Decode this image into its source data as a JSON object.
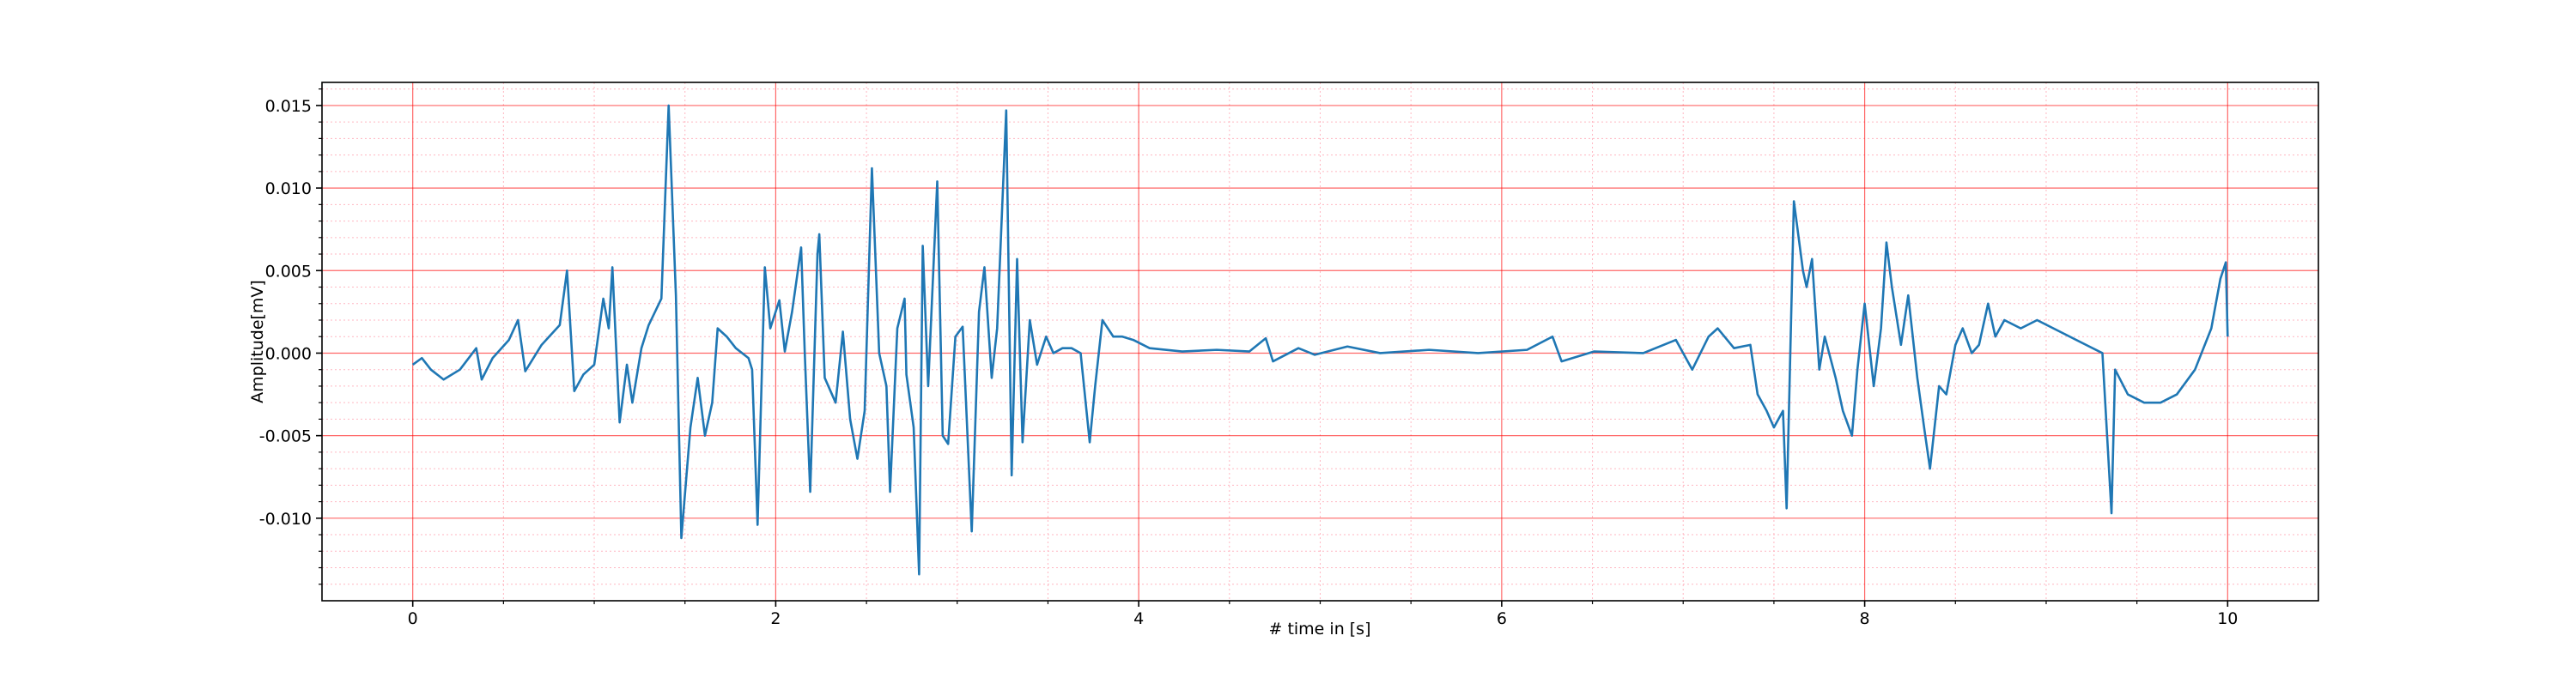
{
  "chart_data": {
    "type": "line",
    "xlabel": "# time in [s]",
    "ylabel": "Amplitude[mV]",
    "xlim": [
      -0.5,
      10.5
    ],
    "ylim": [
      -0.015,
      0.0164
    ],
    "xticks": [
      0,
      2,
      4,
      6,
      8,
      10
    ],
    "yticks": [
      {
        "value": -0.01,
        "label": "-0.010"
      },
      -0.005,
      {
        "value": 0,
        "label": "0.000"
      },
      0.005,
      {
        "value": 0.01,
        "label": "0.010"
      },
      0.015
    ],
    "xminorticks": [
      0.5,
      1,
      1.5,
      2.5,
      3,
      3.5,
      4.5,
      5,
      5.5,
      6.5,
      7,
      7.5,
      8.5,
      9,
      9.5
    ],
    "yminorticks": [
      -0.014,
      -0.013,
      -0.012,
      -0.011,
      -0.009,
      -0.008,
      -0.007,
      -0.006,
      -0.004,
      -0.003,
      -0.002,
      -0.001,
      0.001,
      0.002,
      0.003,
      0.004,
      0.006,
      0.007,
      0.008,
      0.009,
      0.011,
      0.012,
      0.013,
      0.014,
      0.016
    ],
    "grid": true,
    "major_grid_color": "#ff0000",
    "minor_grid_color": "#ffb6c1",
    "x": [
      0.0,
      0.05,
      0.1,
      0.17,
      0.26,
      0.35,
      0.38,
      0.44,
      0.53,
      0.58,
      0.62,
      0.71,
      0.81,
      0.85,
      0.89,
      0.94,
      1.0,
      1.05,
      1.08,
      1.1,
      1.14,
      1.18,
      1.21,
      1.26,
      1.3,
      1.37,
      1.41,
      1.45,
      1.48,
      1.53,
      1.57,
      1.61,
      1.65,
      1.68,
      1.73,
      1.78,
      1.85,
      1.87,
      1.9,
      1.94,
      1.97,
      2.02,
      2.05,
      2.09,
      2.14,
      2.16,
      2.19,
      2.23,
      2.24,
      2.27,
      2.33,
      2.37,
      2.41,
      2.45,
      2.49,
      2.53,
      2.57,
      2.61,
      2.63,
      2.67,
      2.71,
      2.72,
      2.76,
      2.79,
      2.81,
      2.84,
      2.89,
      2.92,
      2.95,
      2.99,
      3.03,
      3.08,
      3.12,
      3.15,
      3.19,
      3.22,
      3.27,
      3.3,
      3.33,
      3.36,
      3.4,
      3.44,
      3.49,
      3.53,
      3.58,
      3.63,
      3.68,
      3.73,
      3.76,
      3.8,
      3.86,
      3.91,
      3.97,
      4.06,
      4.24,
      4.43,
      4.61,
      4.7,
      4.74,
      4.88,
      4.97,
      5.15,
      5.33,
      5.6,
      5.87,
      6.14,
      6.28,
      6.33,
      6.51,
      6.78,
      6.96,
      7.05,
      7.14,
      7.19,
      7.28,
      7.37,
      7.41,
      7.46,
      7.5,
      7.55,
      7.57,
      7.61,
      7.66,
      7.68,
      7.71,
      7.75,
      7.78,
      7.84,
      7.88,
      7.93,
      7.96,
      8.0,
      8.05,
      8.09,
      8.12,
      8.15,
      8.2,
      8.24,
      8.29,
      8.33,
      8.36,
      8.41,
      8.45,
      8.5,
      8.54,
      8.59,
      8.63,
      8.68,
      8.72,
      8.77,
      8.86,
      8.95,
      9.04,
      9.13,
      9.22,
      9.31,
      9.36,
      9.38,
      9.45,
      9.54,
      9.63,
      9.72,
      9.82,
      9.91,
      9.96,
      9.99,
      10.0
    ],
    "series": [
      {
        "name": "signal",
        "color": "#1f77b4",
        "values": [
          -0.0007,
          -0.0003,
          -0.001,
          -0.0016,
          -0.001,
          0.0003,
          -0.0016,
          -0.0003,
          0.0008,
          0.002,
          -0.0011,
          0.0005,
          0.0017,
          0.005,
          -0.0023,
          -0.0013,
          -0.0007,
          0.0033,
          0.0015,
          0.0052,
          -0.0042,
          -0.0007,
          -0.003,
          0.0003,
          0.0017,
          0.0033,
          0.015,
          0.0035,
          -0.0112,
          -0.0045,
          -0.0015,
          -0.005,
          -0.003,
          0.0015,
          0.001,
          0.0003,
          -0.0003,
          -0.001,
          -0.0104,
          0.0052,
          0.0015,
          0.0032,
          0.0001,
          0.0025,
          0.0064,
          0,
          -0.0084,
          0.006,
          0.0072,
          -0.0015,
          -0.003,
          0.0013,
          -0.004,
          -0.0064,
          -0.0035,
          0.0112,
          0,
          -0.002,
          -0.0084,
          0.0015,
          0.0033,
          -0.0013,
          -0.0045,
          -0.0134,
          0.0065,
          -0.002,
          0.0104,
          -0.005,
          -0.0055,
          0.001,
          0.0016,
          -0.0108,
          0.0025,
          0.0052,
          -0.0015,
          0.0015,
          0.0147,
          -0.0074,
          0.0057,
          -0.0054,
          0.002,
          -0.0007,
          0.001,
          0,
          0.0003,
          0.0003,
          0,
          -0.0054,
          -0.002,
          0.002,
          0.001,
          0.001,
          0.0008,
          0.0003,
          0.0001,
          0.0002,
          0.0001,
          0.0009,
          -0.0005,
          0.0003,
          -0.0001,
          0.0004,
          0,
          0.0002,
          0,
          0.0002,
          0.001,
          -0.0005,
          0.0001,
          0,
          0.0008,
          -0.001,
          0.001,
          0.0015,
          0.0003,
          0.0005,
          -0.0025,
          -0.0035,
          -0.0045,
          -0.0035,
          -0.0094,
          0.0092,
          0.005,
          0.004,
          0.0057,
          -0.001,
          0.001,
          -0.0015,
          -0.0035,
          -0.005,
          -0.001,
          0.003,
          -0.002,
          0.0015,
          0.0067,
          0.004,
          0.0005,
          0.0035,
          -0.0015,
          -0.0047,
          -0.007,
          -0.002,
          -0.0025,
          0.0005,
          0.0015,
          0,
          0.0005,
          0.003,
          0.001,
          0.002,
          0.0015,
          0.002,
          0.0015,
          0.001,
          0.0005,
          0,
          -0.0097,
          -0.001,
          -0.0025,
          -0.003,
          -0.003,
          -0.0025,
          -0.001,
          0.0015,
          0.0045,
          0.0055,
          0.001
        ]
      }
    ]
  }
}
